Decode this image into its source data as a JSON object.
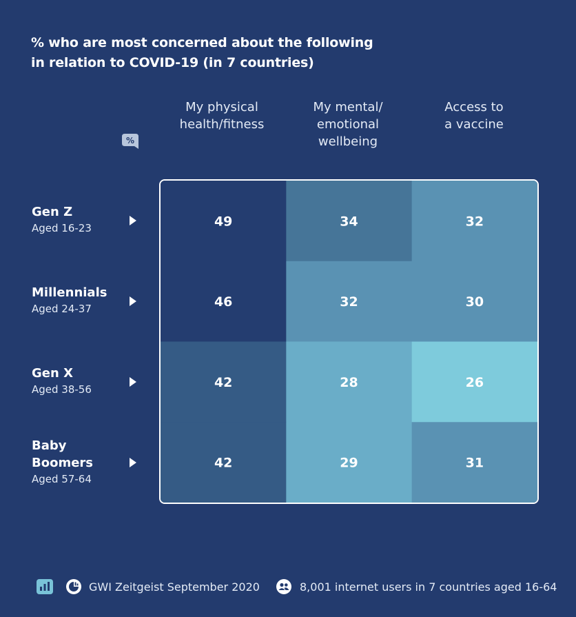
{
  "title_lines": [
    "% who are most concerned about the following",
    "in relation to COVID-19 (in 7 countries)"
  ],
  "columns": [
    {
      "lines": [
        "My physical",
        "health/fitness"
      ]
    },
    {
      "lines": [
        "My mental/",
        "emotional",
        "wellbeing"
      ]
    },
    {
      "lines": [
        "Access to",
        "a vaccine"
      ]
    }
  ],
  "rows": [
    {
      "name_lines": [
        "Gen Z"
      ],
      "sub": "Aged 16-23"
    },
    {
      "name_lines": [
        "Millennials"
      ],
      "sub": "Aged 24-37"
    },
    {
      "name_lines": [
        "Gen X"
      ],
      "sub": "Aged 38-56"
    },
    {
      "name_lines": [
        "Baby",
        "Boomers"
      ],
      "sub": "Aged 57-64"
    }
  ],
  "percent_icon": "percent-icon",
  "chart_data": {
    "type": "heatmap",
    "title": "% who are most concerned about the following in relation to COVID-19 (in 7 countries)",
    "x_categories": [
      "My physical health/fitness",
      "My mental/ emotional wellbeing",
      "Access to a vaccine"
    ],
    "y_categories": [
      "Gen Z",
      "Millennials",
      "Gen X",
      "Baby Boomers"
    ],
    "values": [
      [
        49,
        34,
        32
      ],
      [
        46,
        32,
        30
      ],
      [
        42,
        28,
        26
      ],
      [
        42,
        29,
        31
      ]
    ],
    "cell_colors": [
      [
        "#243d70",
        "#467598",
        "#5a92b3"
      ],
      [
        "#243d70",
        "#5a92b3",
        "#5a92b3"
      ],
      [
        "#355b85",
        "#6aadc8",
        "#7ecbdc"
      ],
      [
        "#355b85",
        "#6aadc8",
        "#5a92b3"
      ]
    ]
  },
  "footer": {
    "source_label": "GWI Zeitgeist September 2020",
    "sample_label": "8,001 internet users in 7 countries aged 16-64",
    "icons": [
      "chart-icon",
      "gwi-logo-icon",
      "users-icon"
    ]
  },
  "colors": {
    "background": "#233b6e",
    "text": "#ffffff",
    "icon_accent": "#79c3d8"
  }
}
